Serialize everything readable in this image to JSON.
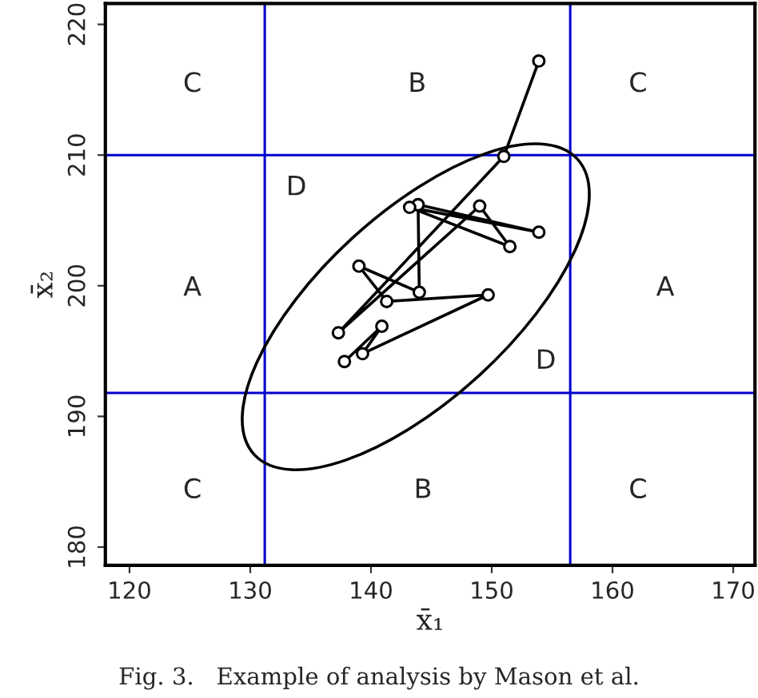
{
  "chart_data": {
    "type": "line",
    "xlabel": "x̄₁",
    "ylabel": "x̄₂",
    "xlim": [
      118,
      171.8
    ],
    "ylim": [
      178.6,
      221.6
    ],
    "xticks": [
      120,
      130,
      140,
      150,
      160,
      170
    ],
    "yticks": [
      180,
      190,
      200,
      210,
      220
    ],
    "grid": false,
    "series": [
      {
        "color": "#000000",
        "marker": "circle",
        "x": [
          137.8,
          140.9,
          139.3,
          149.7,
          141.3,
          139.0,
          144.0,
          143.9,
          153.9,
          143.2,
          151.5,
          149.0,
          137.3,
          151.0,
          153.9
        ],
        "values": [
          194.2,
          196.9,
          194.8,
          199.3,
          198.8,
          201.5,
          199.5,
          206.2,
          204.1,
          206.0,
          203.0,
          206.1,
          196.4,
          209.9,
          217.2
        ]
      }
    ],
    "ref_lines": [
      {
        "axis": "x",
        "value": 131.2,
        "color": "#0000cc"
      },
      {
        "axis": "x",
        "value": 156.5,
        "color": "#0000cc"
      },
      {
        "axis": "y",
        "value": 210,
        "color": "#0000cc"
      },
      {
        "axis": "y",
        "value": 191.8,
        "color": "#0000cc"
      }
    ],
    "annotations": [
      "C",
      "B",
      "C",
      "D",
      "A",
      "A",
      "D",
      "C",
      "B",
      "C",
      "Fig. 3.   Example of analysis by Mason et al."
    ]
  }
}
